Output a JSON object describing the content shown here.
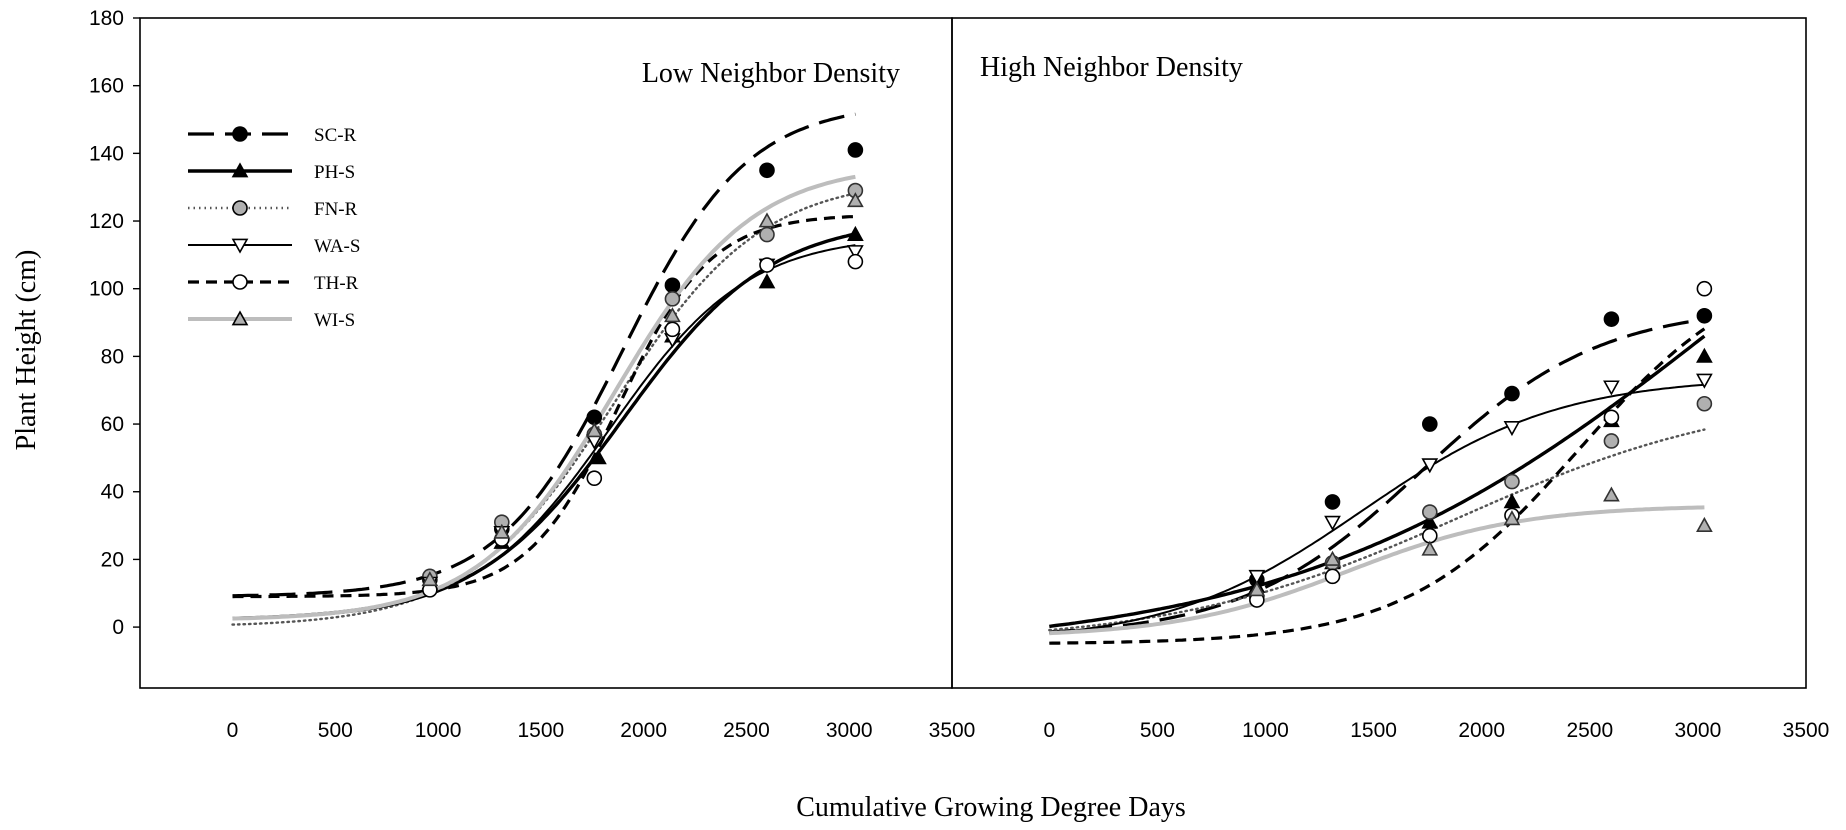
{
  "figure": {
    "ylabel": "Plant Height (cm)",
    "xlabel": "Cumulative Growing Degree Days"
  },
  "chart_data": [
    {
      "type": "scatter",
      "title": "Low Neighbor Density",
      "xlim": [
        -450,
        3500
      ],
      "ylim": [
        -18,
        180
      ],
      "xticks": [
        0,
        500,
        1000,
        1500,
        2000,
        2500,
        3000,
        3500
      ],
      "yticks": [
        0,
        20,
        40,
        60,
        80,
        100,
        120,
        140,
        160,
        180
      ],
      "legend": "top-left",
      "series": [
        {
          "name": "SC-R",
          "style": "long-dash",
          "marker": "circle",
          "fill": "#000000",
          "line": "#000000",
          "x": [
            960,
            1310,
            1760,
            2140,
            2600,
            3030
          ],
          "y": [
            14,
            29,
            62,
            101,
            135,
            141
          ],
          "fit": {
            "base": 9,
            "max": 146,
            "mid": 1900,
            "k": 0.0033
          }
        },
        {
          "name": "PH-S",
          "style": "solid-thick",
          "marker": "triangle-up",
          "fill": "#000000",
          "line": "#000000",
          "x": [
            960,
            1310,
            1780,
            2140,
            2600,
            3030
          ],
          "y": [
            13,
            25,
            50,
            86,
            102,
            116
          ],
          "fit": {
            "base": 2,
            "max": 119,
            "mid": 1900,
            "k": 0.0028
          }
        },
        {
          "name": "FN-R",
          "style": "dotted",
          "marker": "circle",
          "fill": "#b0b0b0",
          "line": "#555555",
          "x": [
            960,
            1310,
            1760,
            2140,
            2600,
            3030
          ],
          "y": [
            15,
            31,
            57,
            97,
            116,
            129
          ],
          "fit": {
            "base": 0,
            "max": 133,
            "mid": 1860,
            "k": 0.0028
          }
        },
        {
          "name": "WA-S",
          "style": "solid-thin",
          "marker": "triangle-down",
          "fill": "#ffffff",
          "line": "#000000",
          "x": [
            960,
            1310,
            1760,
            2140,
            2600,
            3030
          ],
          "y": [
            13,
            28,
            55,
            85,
            107,
            111
          ],
          "fit": {
            "base": 2,
            "max": 114,
            "mid": 1840,
            "k": 0.003
          }
        },
        {
          "name": "TH-R",
          "style": "short-dash",
          "marker": "circle",
          "fill": "#ffffff",
          "line": "#000000",
          "x": [
            960,
            1310,
            1760,
            2140,
            2600,
            3030
          ],
          "y": [
            11,
            26,
            44,
            88,
            107,
            108
          ],
          "fit": {
            "base": 9,
            "max": 113,
            "mid": 1880,
            "k": 0.0045
          }
        },
        {
          "name": "WI-S",
          "style": "solid-gray",
          "marker": "triangle-up",
          "fill": "#b0b0b0",
          "line": "#bdbdbd",
          "x": [
            960,
            1310,
            1760,
            2140,
            2600,
            3030
          ],
          "y": [
            14,
            28,
            58,
            92,
            120,
            126
          ],
          "fit": {
            "base": 2,
            "max": 135,
            "mid": 1860,
            "k": 0.003
          }
        }
      ]
    },
    {
      "type": "scatter",
      "title": "High Neighbor Density",
      "xlim": [
        -450,
        3500
      ],
      "ylim": [
        -18,
        180
      ],
      "xticks": [
        0,
        500,
        1000,
        1500,
        2000,
        2500,
        3000,
        3500
      ],
      "series": [
        {
          "name": "SC-R",
          "style": "long-dash",
          "marker": "circle",
          "fill": "#000000",
          "line": "#000000",
          "x": [
            960,
            1310,
            1760,
            2140,
            2600,
            3030
          ],
          "y": [
            14,
            37,
            60,
            69,
            91,
            92
          ],
          "fit": {
            "base": -3,
            "max": 98,
            "mid": 1720,
            "k": 0.0024
          }
        },
        {
          "name": "PH-S",
          "style": "solid-thick",
          "marker": "triangle-up",
          "fill": "#000000",
          "line": "#000000",
          "x": [
            960,
            1310,
            1760,
            2140,
            2600,
            3030
          ],
          "y": [
            12,
            19,
            31,
            37,
            61,
            80
          ],
          "fit": {
            "base": -8,
            "max": 200,
            "mid": 3150,
            "k": 0.001
          }
        },
        {
          "name": "FN-R",
          "style": "dotted",
          "marker": "circle",
          "fill": "#b0b0b0",
          "line": "#555555",
          "x": [
            960,
            1310,
            1760,
            2140,
            2600,
            3030
          ],
          "y": [
            9,
            19,
            34,
            43,
            55,
            66
          ],
          "fit": {
            "base": -5,
            "max": 75,
            "mid": 1900,
            "k": 0.0015
          }
        },
        {
          "name": "WA-S",
          "style": "solid-thin",
          "marker": "triangle-down",
          "fill": "#ffffff",
          "line": "#000000",
          "x": [
            960,
            1310,
            1760,
            2140,
            2600,
            3030
          ],
          "y": [
            15,
            31,
            48,
            59,
            71,
            73
          ],
          "fit": {
            "base": -5,
            "max": 79,
            "mid": 1450,
            "k": 0.0022
          }
        },
        {
          "name": "TH-R",
          "style": "short-dash",
          "marker": "circle",
          "fill": "#ffffff",
          "line": "#000000",
          "x": [
            960,
            1310,
            1760,
            2140,
            2600,
            3030
          ],
          "y": [
            8,
            15,
            27,
            33,
            62,
            100
          ],
          "fit": {
            "base": -5,
            "max": 115,
            "mid": 2450,
            "k": 0.0025
          }
        },
        {
          "name": "WI-S",
          "style": "solid-gray",
          "marker": "triangle-up",
          "fill": "#b0b0b0",
          "line": "#bdbdbd",
          "x": [
            960,
            1310,
            1760,
            2140,
            2600,
            3030
          ],
          "y": [
            11,
            20,
            23,
            32,
            39,
            30
          ],
          "fit": {
            "base": -3,
            "max": 39,
            "mid": 1380,
            "k": 0.0025
          }
        }
      ]
    }
  ]
}
